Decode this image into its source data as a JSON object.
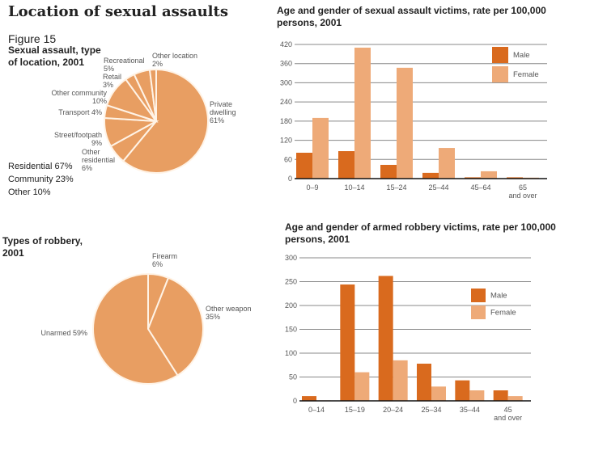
{
  "page": {
    "title": "Location of sexual assaults",
    "figure_label": "Figure 15",
    "figure_subtitle": "Sexual assault, type of location, 2001",
    "summary": [
      "Residential 67%",
      "Community 23%",
      "Other 10%"
    ],
    "robbery_title": "Types of robbery, 2001"
  },
  "colors": {
    "male": "#d96a1e",
    "female": "#eeaa78",
    "pie": "#e89e62",
    "grid": "#888888",
    "axis": "#111111"
  },
  "chart_data": [
    {
      "type": "pie",
      "title": "Sexual assault, type of location, 2001",
      "start": "top",
      "direction": "clockwise",
      "slices": [
        {
          "label": "Private dwelling",
          "value": 61,
          "label_lines": [
            "Private",
            "dwelling",
            "61%"
          ]
        },
        {
          "label": "Other residential",
          "value": 6,
          "label_lines": [
            "Other",
            "residential",
            "6%"
          ]
        },
        {
          "label": "Street/footpath",
          "value": 9,
          "label_lines": [
            "Street/footpath",
            "9%"
          ]
        },
        {
          "label": "Transport",
          "value": 4,
          "label_lines": [
            "Transport 4%"
          ]
        },
        {
          "label": "Other community",
          "value": 10,
          "label_lines": [
            "Other community",
            "10%"
          ]
        },
        {
          "label": "Retail",
          "value": 3,
          "label_lines": [
            "Retail",
            "3%"
          ]
        },
        {
          "label": "Recreational",
          "value": 5,
          "label_lines": [
            "Recreational",
            "5%"
          ]
        },
        {
          "label": "Other location",
          "value": 2,
          "label_lines": [
            "Other location",
            "2%"
          ]
        }
      ]
    },
    {
      "type": "bar",
      "title": "Age and gender of sexual assault victims, rate per 100,000 persons, 2001",
      "categories": [
        "0–9",
        "10–14",
        "15–24",
        "25–44",
        "45–64",
        "65 and over"
      ],
      "category_lines": [
        [
          "0–9"
        ],
        [
          "10–14"
        ],
        [
          "15–24"
        ],
        [
          "25–44"
        ],
        [
          "45–64"
        ],
        [
          "65",
          "and over"
        ]
      ],
      "series": [
        {
          "name": "Male",
          "values": [
            81,
            86,
            43,
            18,
            4,
            4
          ]
        },
        {
          "name": "Female",
          "values": [
            190,
            410,
            347,
            96,
            23,
            3
          ]
        }
      ],
      "yticks": [
        0,
        60,
        120,
        180,
        240,
        300,
        360,
        420
      ],
      "ylim": [
        0,
        420
      ],
      "grid": true,
      "legend": "top-right",
      "xlabel": "",
      "ylabel": ""
    },
    {
      "type": "pie",
      "title": "Types of robbery, 2001",
      "start": "top",
      "direction": "clockwise",
      "slices": [
        {
          "label": "Firearm",
          "value": 6,
          "label_lines": [
            "Firearm",
            "6%"
          ]
        },
        {
          "label": "Other weapon",
          "value": 35,
          "label_lines": [
            "Other weapon",
            "35%"
          ]
        },
        {
          "label": "Unarmed",
          "value": 59,
          "label_lines": [
            "Unarmed 59%"
          ]
        }
      ]
    },
    {
      "type": "bar",
      "title": "Age and gender of armed robbery victims, rate per 100,000 persons, 2001",
      "categories": [
        "0–14",
        "15–19",
        "20–24",
        "25–34",
        "35–44",
        "45 and over"
      ],
      "category_lines": [
        [
          "0–14"
        ],
        [
          "15–19"
        ],
        [
          "20–24"
        ],
        [
          "25–34"
        ],
        [
          "35–44"
        ],
        [
          "45",
          "and over"
        ]
      ],
      "series": [
        {
          "name": "Male",
          "values": [
            10,
            244,
            262,
            78,
            43,
            22
          ]
        },
        {
          "name": "Female",
          "values": [
            1,
            60,
            85,
            30,
            22,
            10
          ]
        }
      ],
      "yticks": [
        0,
        50,
        100,
        150,
        200,
        250,
        300
      ],
      "ylim": [
        0,
        300
      ],
      "grid": true,
      "legend": "right",
      "xlabel": "",
      "ylabel": ""
    }
  ]
}
